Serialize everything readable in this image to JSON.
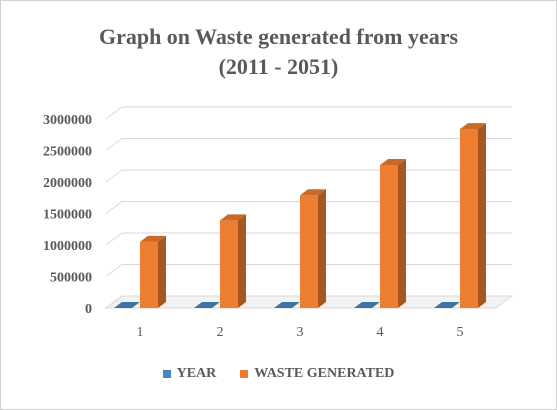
{
  "chart_data": {
    "type": "bar",
    "title_line1": "Graph on Waste generated from years",
    "title_line2": "(2011 - 2051)",
    "categories": [
      "1",
      "2",
      "3",
      "4",
      "5"
    ],
    "series": [
      {
        "name": "YEAR",
        "values": [
          1,
          2,
          3,
          4,
          5
        ],
        "color": "#4a86c6"
      },
      {
        "name": "WASTE GENERATED",
        "values": [
          1050000,
          1390000,
          1790000,
          2270000,
          2840000
        ],
        "color": "#ed7d31"
      }
    ],
    "yticks": [
      "0",
      "500000",
      "1000000",
      "1500000",
      "2000000",
      "2500000",
      "3000000"
    ],
    "ylim": [
      0,
      3000000
    ],
    "grid": true,
    "three_d": true,
    "legend_position": "bottom"
  }
}
